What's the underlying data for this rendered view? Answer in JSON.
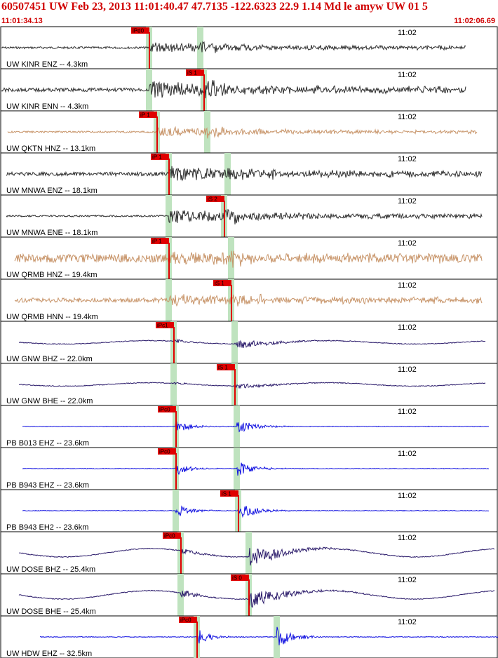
{
  "header": {
    "title": "60507451 UW Feb 23, 2013 11:01:40.47    47.7135 -122.6323 22.9 1.14 Md le amyw UW 01    5",
    "start_time": "11:01:34.13",
    "end_time": "11:02:06.69"
  },
  "colors": {
    "pick": "#e00000",
    "window": "#bfe3bf",
    "black": "#303030",
    "tan": "#c8956a",
    "navy": "#2a1a6a",
    "blue": "#1010e0"
  },
  "traces": [
    {
      "label": "UW KINR ENZ -- 4.3km",
      "time": "11:02",
      "pick": "iPd0",
      "color": "black",
      "style": "burst",
      "amp": 0.6,
      "noise": 0.12,
      "pickT": 12.8,
      "pickT2": 17.2,
      "startT": 0.2,
      "endT": 39.8
    },
    {
      "label": "UW KINR ENN -- 4.3km",
      "time": "11:02",
      "pick": "iS 1",
      "color": "black",
      "style": "burst",
      "amp": 0.95,
      "noise": 0.22,
      "pickT": 17.5,
      "pickT2": 12.8,
      "startT": 0.2,
      "endT": 39.8,
      "pickOnT2": false
    },
    {
      "label": "UW QKTN HNZ -- 13.1km",
      "time": "11:02",
      "pick": "iP 1",
      "color": "tan",
      "style": "burst",
      "amp": 0.55,
      "noise": 0.1,
      "pickT": 13.5,
      "pickT2": 17.8,
      "startT": 0.7,
      "endT": 40.8
    },
    {
      "label": "UW MNWA ENZ -- 18.1km",
      "time": "11:02",
      "pick": "iP 1",
      "color": "black",
      "style": "burst",
      "amp": 0.8,
      "noise": 0.22,
      "pickT": 14.5,
      "pickT2": 19.5,
      "startT": 0.6,
      "endT": 41.2
    },
    {
      "label": "UW MNWA ENE -- 18.1km",
      "time": "11:02",
      "pick": "iS 2",
      "color": "black",
      "style": "burst",
      "amp": 0.8,
      "noise": 0.1,
      "pickT": 19.2,
      "pickT2": 14.5,
      "startT": 0.6,
      "endT": 41.2
    },
    {
      "label": "UW QRMB HNZ -- 19.4km",
      "time": "11:02",
      "pick": "iP 1",
      "color": "tan",
      "style": "burst",
      "amp": 0.55,
      "noise": 0.5,
      "pickT": 14.5,
      "pickT2": 19.8,
      "startT": 1.3,
      "endT": 41.2
    },
    {
      "label": "UW QRMB HNN -- 19.4km",
      "time": "11:02",
      "pick": "iS 1",
      "color": "tan",
      "style": "burst",
      "amp": 0.55,
      "noise": 0.28,
      "pickT": 19.8,
      "pickT2": 14.5,
      "startT": 1.3,
      "endT": 41.2
    },
    {
      "label": "UW GNW BHZ -- 22.0km",
      "time": "11:02",
      "pick": "iPc1",
      "color": "navy",
      "style": "wave",
      "amp": 0.45,
      "noise": 0.02,
      "pickT": 14.9,
      "pickT2": 20.1,
      "startT": 1.7,
      "endT": 41.5
    },
    {
      "label": "UW GNW BHE -- 22.0km",
      "time": "11:02",
      "pick": "iS 1",
      "color": "navy",
      "style": "wave",
      "amp": 0.25,
      "noise": 0.01,
      "pickT": 20.1,
      "pickT2": 14.9,
      "startT": 1.7,
      "endT": 41.5
    },
    {
      "label": "PB B013 EHZ -- 23.6km",
      "time": "11:02",
      "pick": "iPc0",
      "color": "blue",
      "style": "spike",
      "amp": 0.8,
      "noise": 0.02,
      "pickT": 15.1,
      "pickT2": 20.3,
      "startT": 2.0,
      "endT": 41.8
    },
    {
      "label": "PB B943 EHZ -- 23.6km",
      "time": "11:02",
      "pick": "iPc0",
      "color": "blue",
      "style": "spike",
      "amp": 0.8,
      "noise": 0.02,
      "pickT": 15.1,
      "pickT2": 20.3,
      "startT": 2.0,
      "endT": 41.8
    },
    {
      "label": "PB B943 EH2 -- 23.6km",
      "time": "11:02",
      "pick": "iS 1",
      "color": "blue",
      "style": "spike",
      "amp": 0.9,
      "noise": 0.02,
      "pickT": 20.4,
      "pickT2": 15.1,
      "startT": 2.0,
      "endT": 41.8
    },
    {
      "label": "UW DOSE BHZ -- 25.4km",
      "time": "11:02",
      "pick": "iPc0",
      "color": "navy",
      "style": "wave",
      "amp": 0.9,
      "noise": 0.02,
      "pickT": 15.5,
      "pickT2": 21.3,
      "startT": 1.7,
      "endT": 42.3
    },
    {
      "label": "UW DOSE BHE -- 25.4km",
      "time": "11:02",
      "pick": "iS 0",
      "color": "navy",
      "style": "wave",
      "amp": 0.9,
      "noise": 0.02,
      "pickT": 21.3,
      "pickT2": 15.5,
      "startT": 1.7,
      "endT": 42.3
    },
    {
      "label": "UW HDW EHZ -- 32.5km",
      "time": "11:02",
      "pick": "iPc0",
      "color": "blue",
      "style": "spike",
      "amp": 1.0,
      "noise": 0.02,
      "pickT": 16.9,
      "pickT2": 23.7,
      "startT": 3.5,
      "endT": 43.2
    }
  ]
}
